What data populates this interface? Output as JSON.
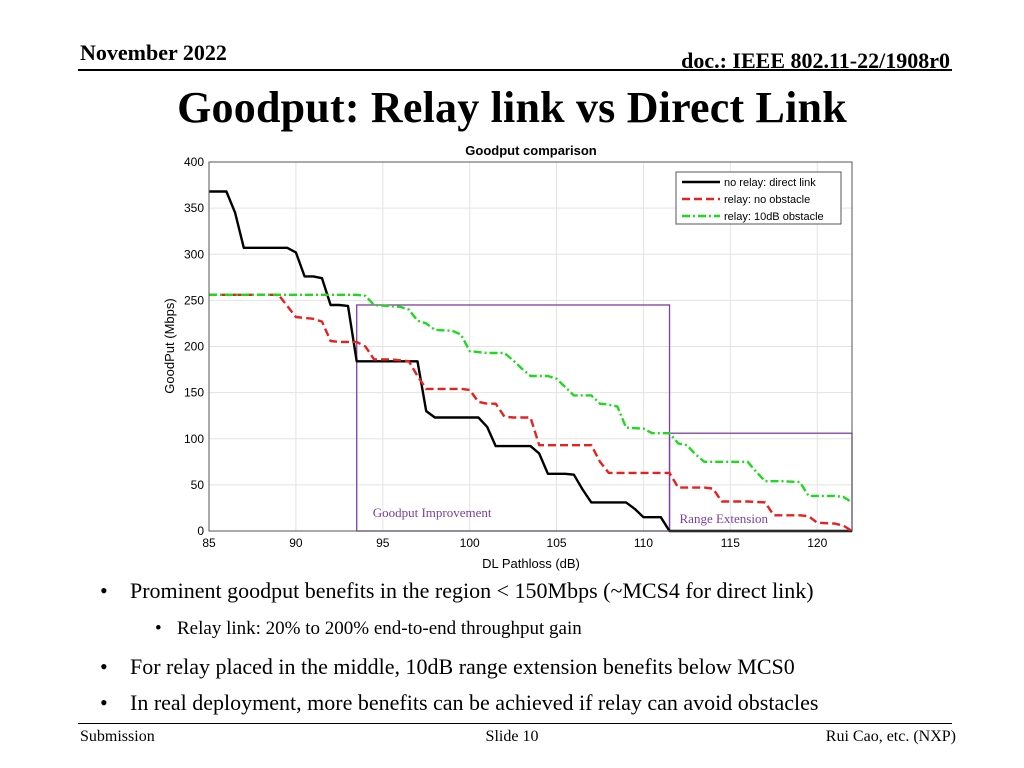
{
  "header": {
    "date": "November 2022",
    "doc": "doc.: IEEE 802.11-22/1908r0"
  },
  "slide_title": "Goodput: Relay link vs Direct Link",
  "bullets": [
    "Prominent goodput benefits in the region < 150Mbps (~MCS4 for direct link)",
    "For relay placed in the middle, 10dB range extension benefits below MCS0",
    "In real deployment, more benefits can be achieved if relay can avoid obstacles"
  ],
  "sub_bullets": [
    "Relay link: 20% to 200% end-to-end throughput gain"
  ],
  "footer": {
    "left": "Submission",
    "center": "Slide 10",
    "right": "Rui Cao, etc. (NXP)"
  },
  "chart_data": {
    "type": "line",
    "title": "Goodput comparison",
    "xlabel": "DL Pathloss (dB)",
    "ylabel": "GoodPut (Mbps)",
    "xlim": [
      85,
      122
    ],
    "ylim": [
      0,
      400
    ],
    "xticks": [
      85,
      90,
      95,
      100,
      105,
      110,
      115,
      120
    ],
    "yticks": [
      0,
      50,
      100,
      150,
      200,
      250,
      300,
      350,
      400
    ],
    "grid": true,
    "legend_position": "top-right",
    "series": [
      {
        "name": "no relay: direct link",
        "color": "#000000",
        "style": "solid",
        "points": [
          [
            85,
            368
          ],
          [
            86,
            368
          ],
          [
            86.5,
            345
          ],
          [
            87,
            307
          ],
          [
            89.5,
            307
          ],
          [
            90,
            302
          ],
          [
            90.5,
            276
          ],
          [
            91,
            276
          ],
          [
            91.5,
            274
          ],
          [
            92,
            245
          ],
          [
            92.5,
            245
          ],
          [
            93,
            244
          ],
          [
            93.5,
            184
          ],
          [
            96,
            184
          ],
          [
            97,
            184
          ],
          [
            97.5,
            130
          ],
          [
            98,
            123
          ],
          [
            100.5,
            123
          ],
          [
            101,
            113
          ],
          [
            101.5,
            92
          ],
          [
            103.5,
            92
          ],
          [
            104,
            84
          ],
          [
            104.5,
            62
          ],
          [
            105.5,
            62
          ],
          [
            106,
            61
          ],
          [
            106.5,
            45
          ],
          [
            107,
            31
          ],
          [
            108,
            31
          ],
          [
            109,
            31
          ],
          [
            109.5,
            24
          ],
          [
            110,
            15
          ],
          [
            111,
            15
          ],
          [
            111.5,
            0
          ],
          [
            122,
            0
          ]
        ]
      },
      {
        "name": "relay: no obstacle",
        "color": "#e8201e",
        "style": "dashed",
        "points": [
          [
            85,
            256
          ],
          [
            89,
            256
          ],
          [
            90,
            232
          ],
          [
            91,
            230
          ],
          [
            91.5,
            227
          ],
          [
            92,
            206
          ],
          [
            92.5,
            205
          ],
          [
            93.5,
            205
          ],
          [
            94,
            200
          ],
          [
            94.5,
            186
          ],
          [
            95.5,
            186
          ],
          [
            96,
            185
          ],
          [
            96.5,
            184
          ],
          [
            97,
            168
          ],
          [
            97.5,
            154
          ],
          [
            99.5,
            154
          ],
          [
            100,
            153
          ],
          [
            100.5,
            140
          ],
          [
            101,
            138
          ],
          [
            101.5,
            138
          ],
          [
            102,
            124
          ],
          [
            102.5,
            123
          ],
          [
            103.5,
            123
          ],
          [
            104,
            93
          ],
          [
            106,
            93
          ],
          [
            107,
            93
          ],
          [
            107.5,
            75
          ],
          [
            108,
            63
          ],
          [
            111.5,
            63
          ],
          [
            112,
            47
          ],
          [
            113.5,
            47
          ],
          [
            114,
            46
          ],
          [
            114.5,
            32
          ],
          [
            116,
            32
          ],
          [
            117,
            31
          ],
          [
            117.5,
            17
          ],
          [
            119,
            17
          ],
          [
            119.5,
            16
          ],
          [
            120,
            9
          ],
          [
            121,
            8
          ],
          [
            121.5,
            6
          ],
          [
            122,
            0
          ]
        ]
      },
      {
        "name": "relay: 10dB obstacle",
        "color": "#1ed91e",
        "style": "dashdot",
        "points": [
          [
            85,
            256
          ],
          [
            89,
            256
          ],
          [
            90,
            256
          ],
          [
            93.5,
            256
          ],
          [
            94,
            255
          ],
          [
            94.5,
            245
          ],
          [
            96,
            243
          ],
          [
            96.5,
            240
          ],
          [
            97,
            228
          ],
          [
            97.5,
            225
          ],
          [
            98,
            218
          ],
          [
            99,
            217
          ],
          [
            99.5,
            213
          ],
          [
            100,
            195
          ],
          [
            101,
            193
          ],
          [
            102,
            193
          ],
          [
            102.5,
            185
          ],
          [
            103,
            176
          ],
          [
            103.5,
            168
          ],
          [
            104.5,
            168
          ],
          [
            105,
            165
          ],
          [
            106,
            147
          ],
          [
            107,
            147
          ],
          [
            107.5,
            138
          ],
          [
            108,
            137
          ],
          [
            108.5,
            135
          ],
          [
            109,
            112
          ],
          [
            110,
            111
          ],
          [
            110.5,
            106
          ],
          [
            111.5,
            106
          ],
          [
            112,
            95
          ],
          [
            112.5,
            93
          ],
          [
            113,
            83
          ],
          [
            113.5,
            75
          ],
          [
            114.5,
            75
          ],
          [
            116,
            75
          ],
          [
            116.5,
            64
          ],
          [
            117,
            54
          ],
          [
            118,
            54
          ],
          [
            119,
            53
          ],
          [
            119.5,
            38
          ],
          [
            121,
            38
          ],
          [
            121.5,
            37
          ],
          [
            122,
            31
          ]
        ]
      }
    ],
    "annotations": [
      {
        "label": "Goodput Improvement",
        "x_range": [
          93.5,
          111.5
        ],
        "y_range": [
          0,
          245
        ]
      },
      {
        "label": "Range Extension",
        "x_range": [
          111.5,
          122
        ],
        "y_range": [
          0,
          106
        ]
      }
    ]
  }
}
